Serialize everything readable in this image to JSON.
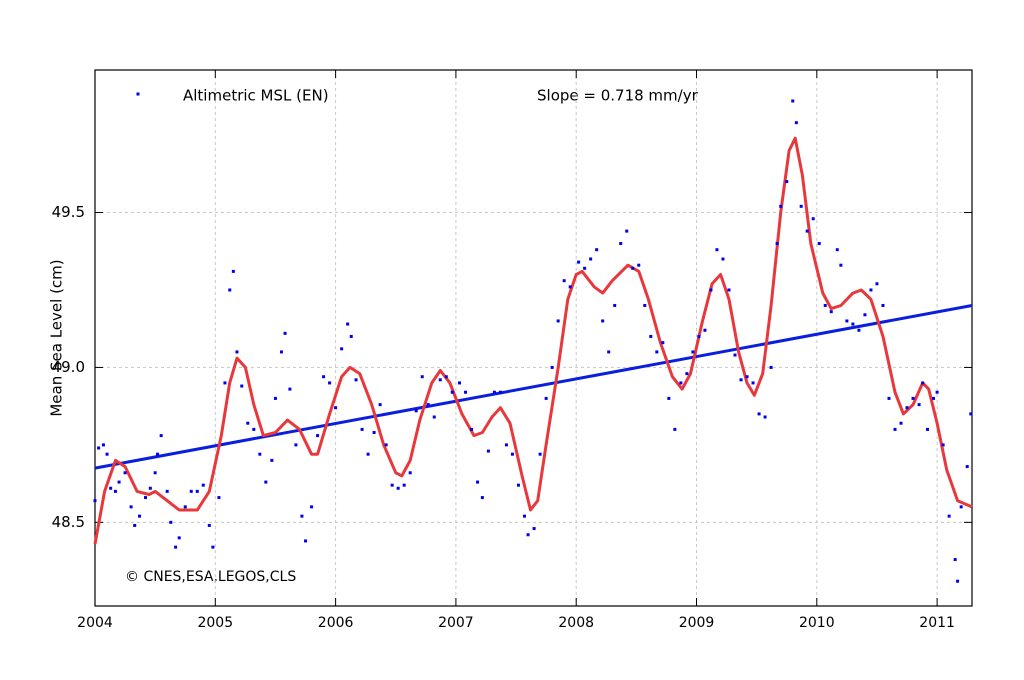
{
  "chart_data": {
    "type": "scatter",
    "ylabel": "Mean Sea Level (cm)",
    "annotations": [
      "Slope = 0.718 mm/yr",
      "© CNES,ESA,LEGOS,CLS"
    ],
    "xlim": [
      2004,
      2011.29
    ],
    "ylim": [
      48.23,
      49.96
    ],
    "xticks": [
      2004,
      2005,
      2006,
      2007,
      2008,
      2009,
      2010,
      2011
    ],
    "yticks": [
      48.5,
      {
        "value": 49,
        "label": "49.0"
      },
      49.5
    ],
    "grid": true,
    "series": [
      {
        "name": "Altimetric MSL (EN)",
        "type": "scatter",
        "color": "#0000ee",
        "x": [
          2004.0,
          2004.03,
          2004.07,
          2004.1,
          2004.13,
          2004.17,
          2004.2,
          2004.25,
          2004.3,
          2004.33,
          2004.37,
          2004.42,
          2004.46,
          2004.5,
          2004.52,
          2004.55,
          2004.6,
          2004.63,
          2004.67,
          2004.7,
          2004.75,
          2004.8,
          2004.85,
          2004.9,
          2004.95,
          2004.98,
          2005.03,
          2005.08,
          2005.12,
          2005.15,
          2005.18,
          2005.22,
          2005.27,
          2005.32,
          2005.37,
          2005.42,
          2005.47,
          2005.5,
          2005.55,
          2005.58,
          2005.62,
          2005.67,
          2005.72,
          2005.75,
          2005.8,
          2005.85,
          2005.9,
          2005.95,
          2006.0,
          2006.05,
          2006.1,
          2006.13,
          2006.17,
          2006.22,
          2006.27,
          2006.32,
          2006.37,
          2006.42,
          2006.47,
          2006.52,
          2006.57,
          2006.62,
          2006.67,
          2006.72,
          2006.77,
          2006.82,
          2006.87,
          2006.92,
          2006.97,
          2007.03,
          2007.08,
          2007.13,
          2007.18,
          2007.22,
          2007.27,
          2007.32,
          2007.37,
          2007.42,
          2007.47,
          2007.52,
          2007.57,
          2007.6,
          2007.65,
          2007.7,
          2007.75,
          2007.8,
          2007.85,
          2007.9,
          2007.95,
          2008.02,
          2008.07,
          2008.12,
          2008.17,
          2008.22,
          2008.27,
          2008.32,
          2008.37,
          2008.42,
          2008.47,
          2008.52,
          2008.57,
          2008.62,
          2008.67,
          2008.72,
          2008.77,
          2008.82,
          2008.87,
          2008.92,
          2008.97,
          2009.02,
          2009.07,
          2009.12,
          2009.17,
          2009.22,
          2009.27,
          2009.32,
          2009.37,
          2009.42,
          2009.47,
          2009.52,
          2009.57,
          2009.62,
          2009.67,
          2009.7,
          2009.75,
          2009.8,
          2009.83,
          2009.87,
          2009.92,
          2009.97,
          2010.02,
          2010.07,
          2010.12,
          2010.17,
          2010.2,
          2010.25,
          2010.3,
          2010.35,
          2010.4,
          2010.45,
          2010.5,
          2010.55,
          2010.6,
          2010.65,
          2010.7,
          2010.75,
          2010.8,
          2010.85,
          2010.88,
          2010.92,
          2010.97,
          2011.0,
          2011.05,
          2011.1,
          2011.15,
          2011.17,
          2011.2,
          2011.25,
          2011.28
        ],
        "values": [
          48.57,
          48.74,
          48.75,
          48.72,
          48.61,
          48.6,
          48.63,
          48.66,
          48.55,
          48.49,
          48.52,
          48.58,
          48.61,
          48.66,
          48.72,
          48.78,
          48.6,
          48.5,
          48.42,
          48.45,
          48.55,
          48.6,
          48.6,
          48.62,
          48.49,
          48.42,
          48.58,
          48.95,
          49.25,
          49.31,
          49.05,
          48.94,
          48.82,
          48.8,
          48.72,
          48.63,
          48.7,
          48.9,
          49.05,
          49.11,
          48.93,
          48.75,
          48.52,
          48.44,
          48.55,
          48.78,
          48.97,
          48.95,
          48.87,
          49.06,
          49.14,
          49.1,
          48.96,
          48.8,
          48.72,
          48.79,
          48.88,
          48.75,
          48.62,
          48.61,
          48.62,
          48.66,
          48.86,
          48.97,
          48.88,
          48.84,
          48.96,
          48.97,
          48.92,
          48.95,
          48.92,
          48.8,
          48.63,
          48.58,
          48.73,
          48.92,
          48.92,
          48.75,
          48.72,
          48.62,
          48.52,
          48.46,
          48.48,
          48.72,
          48.9,
          49.0,
          49.15,
          49.28,
          49.26,
          49.34,
          49.32,
          49.35,
          49.38,
          49.15,
          49.05,
          49.2,
          49.4,
          49.44,
          49.32,
          49.33,
          49.2,
          49.1,
          49.05,
          49.08,
          48.9,
          48.8,
          48.95,
          48.98,
          49.05,
          49.1,
          49.12,
          49.25,
          49.38,
          49.35,
          49.25,
          49.04,
          48.96,
          48.97,
          48.95,
          48.85,
          48.84,
          49.0,
          49.4,
          49.52,
          49.6,
          49.86,
          49.79,
          49.52,
          49.44,
          49.48,
          49.4,
          49.2,
          49.18,
          49.38,
          49.33,
          49.15,
          49.14,
          49.12,
          49.17,
          49.25,
          49.27,
          49.2,
          48.9,
          48.8,
          48.82,
          48.87,
          48.9,
          48.88,
          48.95,
          48.8,
          48.9,
          48.92,
          48.75,
          48.52,
          48.38,
          48.31,
          48.55,
          48.68,
          48.85
        ]
      },
      {
        "type": "line",
        "color": "#e8383c",
        "x": [
          2004.0,
          2004.08,
          2004.17,
          2004.25,
          2004.35,
          2004.45,
          2004.5,
          2004.6,
          2004.7,
          2004.85,
          2004.95,
          2005.05,
          2005.12,
          2005.18,
          2005.25,
          2005.32,
          2005.4,
          2005.5,
          2005.6,
          2005.7,
          2005.8,
          2005.85,
          2005.95,
          2006.05,
          2006.12,
          2006.2,
          2006.3,
          2006.4,
          2006.5,
          2006.55,
          2006.62,
          2006.7,
          2006.8,
          2006.87,
          2006.95,
          2007.05,
          2007.15,
          2007.22,
          2007.3,
          2007.37,
          2007.45,
          2007.55,
          2007.62,
          2007.68,
          2007.75,
          2007.85,
          2007.93,
          2008.0,
          2008.05,
          2008.15,
          2008.22,
          2008.3,
          2008.43,
          2008.52,
          2008.6,
          2008.7,
          2008.8,
          2008.88,
          2008.95,
          2009.05,
          2009.13,
          2009.2,
          2009.27,
          2009.35,
          2009.42,
          2009.48,
          2009.55,
          2009.62,
          2009.7,
          2009.77,
          2009.82,
          2009.88,
          2009.95,
          2010.05,
          2010.12,
          2010.2,
          2010.3,
          2010.37,
          2010.45,
          2010.55,
          2010.65,
          2010.72,
          2010.8,
          2010.88,
          2010.93,
          2011.0,
          2011.08,
          2011.17,
          2011.29
        ],
        "values": [
          48.43,
          48.6,
          48.7,
          48.68,
          48.6,
          48.59,
          48.6,
          48.57,
          48.54,
          48.54,
          48.6,
          48.78,
          48.95,
          49.03,
          49.0,
          48.88,
          48.78,
          48.79,
          48.83,
          48.8,
          48.72,
          48.72,
          48.85,
          48.97,
          49.0,
          48.98,
          48.88,
          48.75,
          48.66,
          48.65,
          48.7,
          48.83,
          48.95,
          48.99,
          48.95,
          48.85,
          48.78,
          48.79,
          48.84,
          48.87,
          48.82,
          48.65,
          48.54,
          48.57,
          48.75,
          49.0,
          49.22,
          49.3,
          49.31,
          49.26,
          49.24,
          49.28,
          49.33,
          49.31,
          49.22,
          49.08,
          48.97,
          48.93,
          48.98,
          49.15,
          49.27,
          49.3,
          49.22,
          49.05,
          48.95,
          48.91,
          48.98,
          49.2,
          49.5,
          49.7,
          49.74,
          49.62,
          49.4,
          49.24,
          49.19,
          49.2,
          49.24,
          49.25,
          49.22,
          49.1,
          48.92,
          48.85,
          48.88,
          48.95,
          48.93,
          48.82,
          48.67,
          48.57,
          48.55
        ]
      },
      {
        "type": "line",
        "color": "#0a1ee0",
        "x": [
          2004,
          2011.29
        ],
        "values": [
          48.675,
          49.2
        ]
      }
    ]
  }
}
